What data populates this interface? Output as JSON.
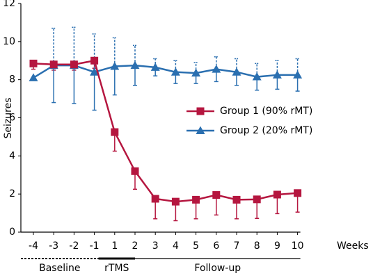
{
  "chart_data": {
    "type": "line",
    "y_label": "Seizures",
    "x_label": "Weeks",
    "categories": [
      "-4",
      "-3",
      "-2",
      "-1",
      "1",
      "2",
      "3",
      "4",
      "5",
      "6",
      "7",
      "8",
      "9",
      "10"
    ],
    "ylim": [
      0,
      12
    ],
    "yticks": [
      0,
      2,
      4,
      6,
      8,
      10,
      12
    ],
    "legend": "center-right",
    "series": [
      {
        "name": "Group 1 (90% rMT)",
        "color": "#b5163f",
        "marker": "square",
        "values": [
          8.85,
          8.8,
          8.8,
          9.0,
          5.25,
          3.2,
          1.75,
          1.6,
          1.7,
          1.95,
          1.7,
          1.72,
          1.97,
          2.05
        ],
        "errors": [
          0.3,
          0.3,
          0.3,
          0.4,
          1.0,
          0.95,
          1.05,
          1.0,
          1.0,
          1.05,
          1.0,
          1.0,
          1.0,
          1.0
        ]
      },
      {
        "name": "Group 2 (20% rMT)",
        "color": "#2a6fb0",
        "marker": "triangle",
        "values": [
          8.1,
          8.75,
          8.75,
          8.4,
          8.7,
          8.75,
          8.65,
          8.4,
          8.35,
          8.55,
          8.4,
          8.15,
          8.25,
          8.25
        ],
        "errors": [
          0,
          1.95,
          2.0,
          2.0,
          1.5,
          1.05,
          0.45,
          0.6,
          0.55,
          0.65,
          0.7,
          0.7,
          0.75,
          0.85
        ]
      }
    ],
    "phases": [
      {
        "label": "Baseline"
      },
      {
        "label": "rTMS"
      },
      {
        "label": "Follow-up"
      }
    ]
  }
}
